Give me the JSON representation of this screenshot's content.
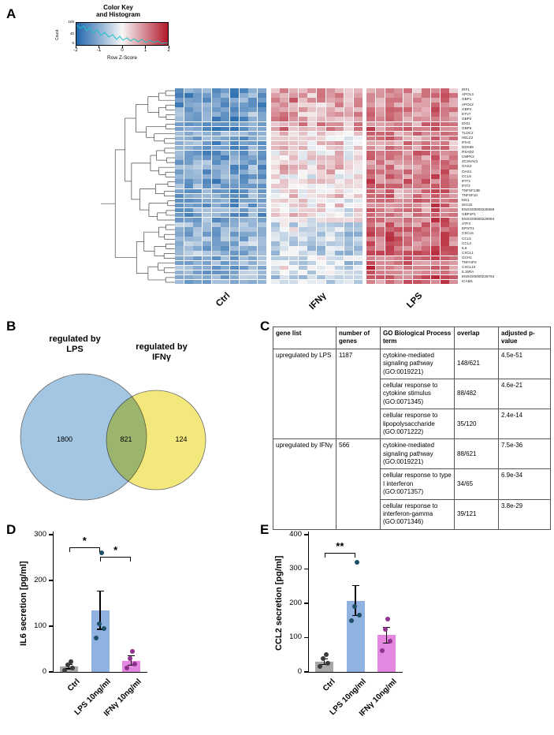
{
  "panels": {
    "a": "A",
    "b": "B",
    "c": "C",
    "d": "D",
    "e": "E"
  },
  "color_key": {
    "title_line1": "Color Key",
    "title_line2": "and Histogram",
    "y_axis_label": "Count",
    "y_ticks": [
      "100",
      "40",
      "0"
    ],
    "x_ticks": [
      "-2",
      "-1",
      "0",
      "1",
      "2"
    ],
    "x_axis_label": "Row Z-Score"
  },
  "venn": {
    "left_label_line1": "regulated by",
    "left_label_line2": "LPS",
    "right_label_line1": "regulated by",
    "right_label_line2": "IFNγ",
    "left_only": "1800",
    "overlap": "821",
    "right_only": "124",
    "left_color": "#a3c6e3",
    "right_color": "#f3e87c"
  },
  "go_table": {
    "headers": [
      "gene list",
      "number of genes",
      "GO Biological Process term",
      "overlap",
      "adjusted p-value"
    ],
    "groups": [
      {
        "gene_list": "upregulated by LPS",
        "number_of_genes": "1187",
        "rows": [
          {
            "term": "cytokine-mediated signaling pathway (GO:0019221)",
            "overlap": "148/621",
            "p": "4.5e-51"
          },
          {
            "term": "cellular response to cytokine stimulus (GO:0071345)",
            "overlap": "88/482",
            "p": "4.6e-21"
          },
          {
            "term": "cellular response to lipopolysaccharide (GO:0071222)",
            "overlap": "35/120",
            "p": "2.4e-14"
          }
        ]
      },
      {
        "gene_list": "upregulated by IFNγ",
        "number_of_genes": "566",
        "rows": [
          {
            "term": "cytokine-mediated signaling pathway (GO:0019221)",
            "overlap": "88/621",
            "p": "7.5e-36"
          },
          {
            "term": "cellular response to type I interferon (GO:0071357)",
            "overlap": "34/65",
            "p": "6.9e-34"
          },
          {
            "term": "cellular response to interferon-gamma (GO:0071346)",
            "overlap": "39/121",
            "p": "3.8e-29"
          }
        ]
      }
    ]
  },
  "chart_data": [
    {
      "id": "panel_a_heatmap",
      "type": "heatmap",
      "zlim": [
        -2,
        2
      ],
      "colors": {
        "low": "#2166ac",
        "mid": "#f7f7f7",
        "high": "#b2182b",
        "histogram": "#1cc3c8"
      },
      "column_groups": [
        {
          "label": "Ctrl",
          "columns": 10
        },
        {
          "label": "IFNγ",
          "columns": 10
        },
        {
          "label": "LPS",
          "columns": 10
        }
      ],
      "genes": [
        "IRF1",
        "APOL3",
        "GBP1",
        "APOL2",
        "GBP4",
        "ETV7",
        "GBP2",
        "IDO1",
        "GBP5",
        "TLDC2",
        "HELZ2",
        "IFIH1",
        "DDX58",
        "RSAD2",
        "CMPK2",
        "ZC3HAV1",
        "OAS2",
        "OAS1",
        "CCL8",
        "IFIT3",
        "IFIT2",
        "TNFSF13B",
        "TNFSF10",
        "MX1",
        "ISG15",
        "ENSG00000225968",
        "GBP1P1",
        "ENSG00000229094",
        "ATF3",
        "EPSTI1",
        "CXCL5",
        "CCL5",
        "CCL3",
        "IL6",
        "CXCL1",
        "GCH1",
        "TNFAIP2",
        "CXCL10",
        "IL15RA",
        "ENSG00000226763",
        "ICAM1"
      ],
      "row_group_z": [
        [
          -1.2,
          0.8,
          0.9
        ],
        [
          -1.3,
          0.7,
          1.0
        ],
        [
          -1.2,
          0.9,
          1.0
        ],
        [
          -1.3,
          0.6,
          1.0
        ],
        [
          -1.2,
          0.8,
          1.1
        ],
        [
          -1.1,
          0.7,
          0.9
        ],
        [
          -1.3,
          0.8,
          1.0
        ],
        [
          -1.2,
          0.9,
          1.1
        ],
        [
          -1.3,
          0.8,
          1.1
        ],
        [
          -1.1,
          0.2,
          1.1
        ],
        [
          -1.2,
          0.3,
          1.1
        ],
        [
          -1.2,
          0.4,
          1.0
        ],
        [
          -1.2,
          0.3,
          1.1
        ],
        [
          -1.3,
          0.2,
          1.2
        ],
        [
          -1.2,
          0.3,
          1.2
        ],
        [
          -1.1,
          0.2,
          1.0
        ],
        [
          -1.2,
          0.4,
          1.1
        ],
        [
          -1.2,
          0.3,
          1.1
        ],
        [
          -1.1,
          0.1,
          1.2
        ],
        [
          -1.3,
          0.2,
          1.2
        ],
        [
          -1.2,
          0.1,
          1.2
        ],
        [
          -1.1,
          0.2,
          1.1
        ],
        [
          -1.2,
          0.3,
          1.1
        ],
        [
          -1.3,
          0.2,
          1.2
        ],
        [
          -1.2,
          0.2,
          1.2
        ],
        [
          -1.1,
          0.1,
          1.2
        ],
        [
          -1.2,
          0.2,
          1.1
        ],
        [
          -1.1,
          0.1,
          1.2
        ],
        [
          -0.9,
          -0.5,
          1.3
        ],
        [
          -1.0,
          -0.3,
          1.2
        ],
        [
          -0.9,
          -0.6,
          1.3
        ],
        [
          -1.0,
          -0.4,
          1.3
        ],
        [
          -0.9,
          -0.6,
          1.3
        ],
        [
          -1.0,
          -0.5,
          1.3
        ],
        [
          -0.9,
          -0.6,
          1.3
        ],
        [
          -1.0,
          -0.3,
          1.2
        ],
        [
          -1.0,
          -0.4,
          1.3
        ],
        [
          -1.1,
          -0.2,
          1.3
        ],
        [
          -1.0,
          -0.3,
          1.2
        ],
        [
          -0.9,
          -0.5,
          1.3
        ],
        [
          -1.0,
          -0.4,
          1.3
        ]
      ]
    },
    {
      "id": "il6_secretion",
      "type": "bar",
      "categories": [
        "Ctrl",
        "LPS 10ng/ml",
        "IFNγ 10ng/ml"
      ],
      "values": [
        12,
        135,
        25
      ],
      "errors": [
        6,
        43,
        12
      ],
      "points": [
        [
          4,
          9,
          15,
          22
        ],
        [
          75,
          95,
          105,
          260
        ],
        [
          8,
          18,
          30,
          45
        ]
      ],
      "bar_colors": [
        "#a8a8a8",
        "#8fb2e0",
        "#e387e0"
      ],
      "point_colors": [
        "#3b3b3b",
        "#1d4f66",
        "#8e3190"
      ],
      "ylabel": "IL6 secretion [pg/ml]",
      "ylim": [
        0,
        300
      ],
      "yticks": [
        0,
        100,
        200,
        300
      ],
      "significance": [
        {
          "from": 0,
          "to": 1,
          "label": "*",
          "y": 272
        },
        {
          "from": 1,
          "to": 2,
          "label": "*",
          "y": 252
        }
      ]
    },
    {
      "id": "ccl2_secretion",
      "type": "bar",
      "categories": [
        "Ctrl",
        "LPS 10ng/ml",
        "IFNγ 10ng/ml"
      ],
      "values": [
        30,
        208,
        107
      ],
      "errors": [
        9,
        45,
        24
      ],
      "points": [
        [
          15,
          25,
          38,
          50
        ],
        [
          150,
          165,
          190,
          320
        ],
        [
          62,
          90,
          125,
          155
        ]
      ],
      "bar_colors": [
        "#a8a8a8",
        "#8fb2e0",
        "#e387e0"
      ],
      "point_colors": [
        "#3b3b3b",
        "#1d4f66",
        "#8e3190"
      ],
      "ylabel": "CCL2 secretion [pg/ml]",
      "ylim": [
        0,
        400
      ],
      "yticks": [
        0,
        100,
        200,
        300,
        400
      ],
      "significance": [
        {
          "from": 0,
          "to": 1,
          "label": "**",
          "y": 348
        }
      ]
    }
  ]
}
